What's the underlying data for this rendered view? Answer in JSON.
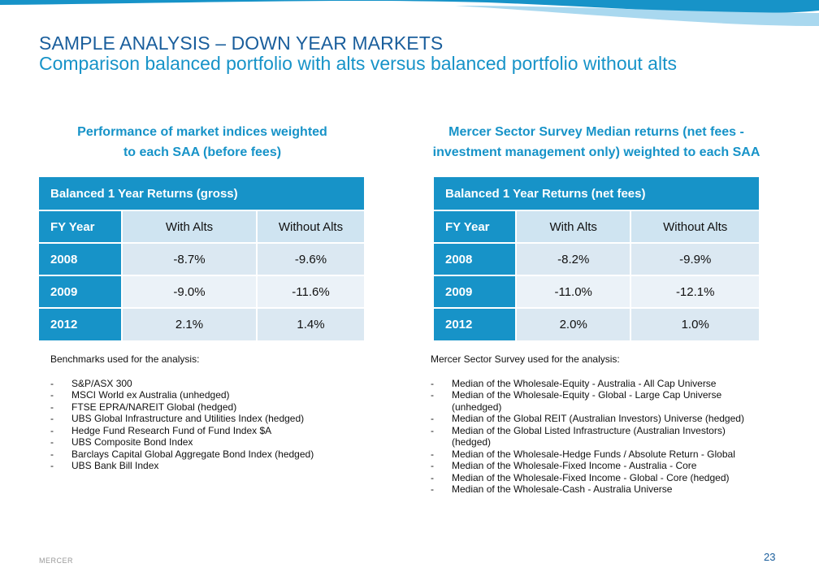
{
  "header": {
    "title": "SAMPLE ANALYSIS – DOWN YEAR MARKETS",
    "subtitle": "Comparison balanced portfolio with alts versus balanced portfolio without alts"
  },
  "left": {
    "heading_line1": "Performance of market indices weighted",
    "heading_line2": "to each SAA (before fees)",
    "table": {
      "title": "Balanced 1 Year Returns (gross)",
      "columns": [
        "FY Year",
        "With Alts",
        "Without Alts"
      ],
      "rows": [
        [
          "2008",
          "-8.7%",
          "-9.6%"
        ],
        [
          "2009",
          "-9.0%",
          "-11.6%"
        ],
        [
          "2012",
          "2.1%",
          "1.4%"
        ]
      ]
    },
    "notes_intro": "Benchmarks used for the analysis:",
    "notes": [
      "S&P/ASX 300",
      "MSCI World ex Australia (unhedged)",
      "FTSE EPRA/NAREIT  Global (hedged)",
      "UBS Global Infrastructure and Utilities  Index (hedged)",
      "Hedge Fund Research Fund of Fund Index $A",
      "UBS Composite Bond Index",
      "Barclays  Capital Global Aggregate Bond Index (hedged)",
      "UBS Bank Bill Index"
    ]
  },
  "right": {
    "heading_line1": "Mercer Sector Survey Median returns (net fees -",
    "heading_line2": "investment management only) weighted to each SAA",
    "table": {
      "title": "Balanced 1 Year Returns (net fees)",
      "columns": [
        "FY Year",
        "With Alts",
        "Without Alts"
      ],
      "rows": [
        [
          "2008",
          "-8.2%",
          "-9.9%"
        ],
        [
          "2009",
          "-11.0%",
          "-12.1%"
        ],
        [
          "2012",
          "2.0%",
          "1.0%"
        ]
      ]
    },
    "notes_intro": "Mercer Sector Survey used for the analysis:",
    "notes": [
      "Median of the Wholesale-Equity - Australia  - All Cap Universe",
      "Median of the Wholesale-Equity - Global - Large Cap Universe (unhedged)",
      "Median of the Global REIT (Australian Investors) Universe (hedged)",
      "Median of the Global Listed Infrastructure (Australian Investors) (hedged)",
      "Median of the Wholesale-Hedge Funds / Absolute Return - Global",
      "Median of the Wholesale-Fixed Income - Australia - Core",
      "Median of the Wholesale-Fixed Income - Global - Core (hedged)",
      "Median of the Wholesale-Cash - Australia  Universe"
    ]
  },
  "footer": {
    "brand": "MERCER",
    "page_number": "23"
  },
  "colors": {
    "accent": "#1793c8",
    "title": "#1a5e9c",
    "table_col_header_bg": "#cfe4f1",
    "table_row_bg": "#dbe8f2"
  }
}
